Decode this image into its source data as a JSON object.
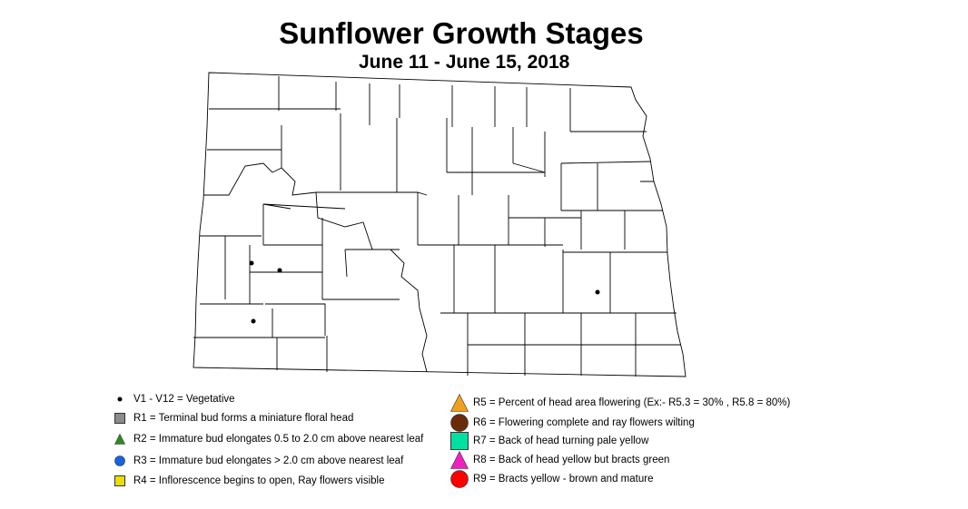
{
  "title": "Sunflower Growth Stages",
  "subtitle": "June 11 - June 15, 2018",
  "legend": {
    "left": [
      {
        "label": "V1 - V12 = Vegetative",
        "icon": "small-dot-icon",
        "color": "#000000"
      },
      {
        "label": "R1 = Terminal bud forms a miniature floral head",
        "icon": "square-icon",
        "color": "#8c8c8c"
      },
      {
        "label": "R2 = Immature bud elongates 0.5 to 2.0 cm above nearest leaf",
        "icon": "triangle-icon",
        "color": "#2e8b1f"
      },
      {
        "label": "R3 = Immature bud elongates > 2.0 cm above nearest leaf",
        "icon": "circle-icon",
        "color": "#1565e0"
      },
      {
        "label": "R4 = Inflorescence begins to open, Ray flowers visible",
        "icon": "square-icon",
        "color": "#e8e000"
      }
    ],
    "right": [
      {
        "label": "R5 = Percent of head area flowering (Ex:- R5.3 = 30% , R5.8 = 80%)",
        "icon": "triangle-icon",
        "color": "#f0a020"
      },
      {
        "label": "R6 = Flowering complete and ray flowers wilting",
        "icon": "circle-icon",
        "color": "#6b2a0a"
      },
      {
        "label": "R7 = Back of head turning pale yellow",
        "icon": "square-icon",
        "color": "#00e0a0"
      },
      {
        "label": "R8 = Back of head yellow but bracts green",
        "icon": "triangle-icon",
        "color": "#f020c0"
      },
      {
        "label": "R9 = Bracts yellow - brown and mature",
        "icon": "circle-icon",
        "color": "#ff0000"
      }
    ]
  },
  "observations": [
    {
      "stage": "V1 - V12"
    },
    {
      "stage": "V1 - V12"
    },
    {
      "stage": "V1 - V12"
    },
    {
      "stage": "V1 - V12"
    }
  ]
}
